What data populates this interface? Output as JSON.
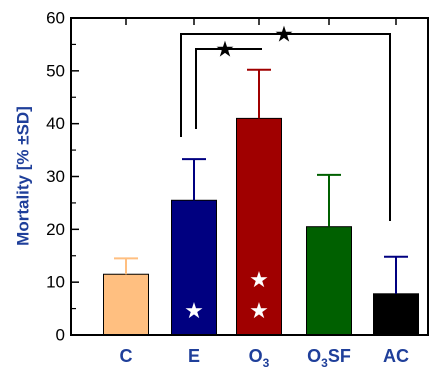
{
  "chart_data": {
    "type": "bar",
    "title": "",
    "xlabel": "",
    "ylabel": "Mortality [% ±SD]",
    "ylim": [
      0,
      60
    ],
    "yticks": [
      "0",
      "10",
      "20",
      "30",
      "40",
      "50",
      "60"
    ],
    "categories": [
      {
        "main": "C",
        "sub": ""
      },
      {
        "main": "E",
        "sub": ""
      },
      {
        "main": "O",
        "sub": "3"
      },
      {
        "main": "O",
        "sub": "3",
        "suffix": "SF"
      },
      {
        "main": "AC",
        "sub": ""
      }
    ],
    "values": [
      11.5,
      25.5,
      41,
      20.5,
      7.8
    ],
    "errors": [
      3,
      7.8,
      9.2,
      9.8,
      7
    ],
    "colors": [
      "#ffbf80",
      "#000080",
      "#a00000",
      "#006000",
      "#000000"
    ],
    "inbar_stars": [
      {
        "category_index": 1,
        "y_values": [
          4.6
        ]
      },
      {
        "category_index": 2,
        "y_values": [
          10.5,
          4.6
        ]
      }
    ],
    "significance_brackets": [
      {
        "from_index": 1,
        "to_index": 2,
        "star": "★"
      },
      {
        "from_index": 0,
        "to_index": 4,
        "star": "★"
      }
    ],
    "grid": false,
    "legend": "none"
  }
}
